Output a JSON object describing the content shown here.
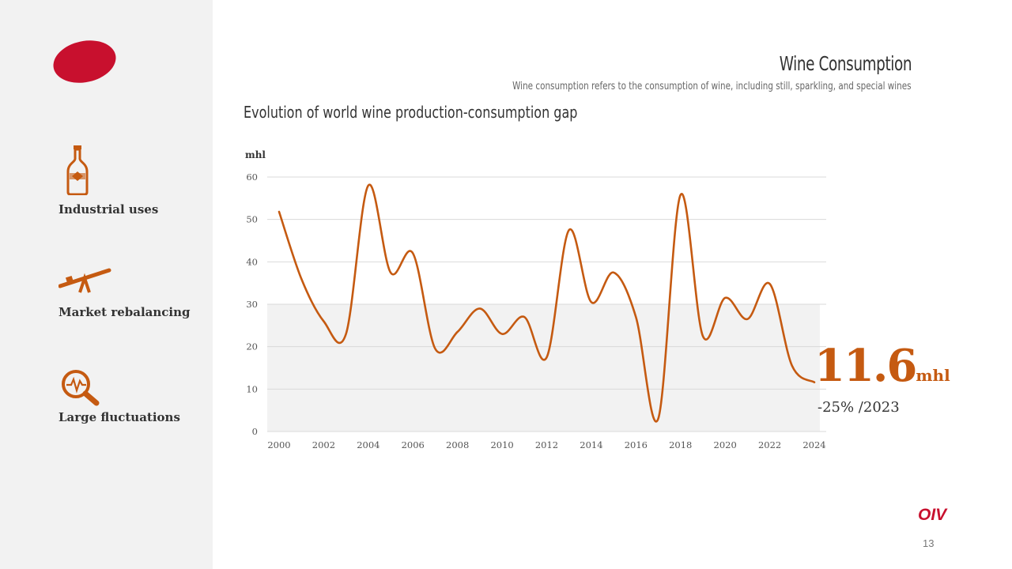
{
  "header": {
    "title": "Wine Consumption",
    "subtitle": "Wine consumption refers to the consumption of wine, including still, sparkling, and special wines"
  },
  "sidebar": {
    "items": [
      {
        "label": "Industrial uses",
        "icon": "wine-bottle-icon"
      },
      {
        "label": "Market rebalancing",
        "icon": "seesaw-icon"
      },
      {
        "label": "Large fluctuations",
        "icon": "magnifier-pulse-icon"
      }
    ]
  },
  "highlight": {
    "value": "11.6",
    "unit": "mhl",
    "change": "-25% /2023"
  },
  "footer": {
    "brand": "OIV",
    "page": "13"
  },
  "colors": {
    "accent": "#c55a11",
    "brand": "#c8102e",
    "sidebar_bg": "#f2f2f2",
    "band": "#f2f2f2"
  },
  "chart_data": {
    "type": "line",
    "title": "Evolution of world wine production-consumption gap",
    "ylabel": "mhl",
    "xlabel": "",
    "ylim": [
      0,
      60
    ],
    "yticks": [
      0,
      10,
      20,
      30,
      40,
      50,
      60
    ],
    "xticks": [
      2000,
      2002,
      2004,
      2006,
      2008,
      2010,
      2012,
      2014,
      2016,
      2018,
      2020,
      2022,
      2024
    ],
    "shaded_band": [
      0,
      30
    ],
    "grid": true,
    "series": [
      {
        "name": "Production-consumption gap",
        "x": [
          2000,
          2001,
          2002,
          2003,
          2004,
          2005,
          2006,
          2007,
          2008,
          2009,
          2010,
          2011,
          2012,
          2013,
          2014,
          2015,
          2016,
          2017,
          2018,
          2019,
          2020,
          2021,
          2022,
          2023,
          2024
        ],
        "values": [
          51.8,
          36,
          26,
          23,
          58,
          37.5,
          42,
          19.5,
          23.5,
          29,
          23,
          27,
          17.5,
          47.5,
          30.5,
          37.5,
          27,
          3,
          55.8,
          22.5,
          31.5,
          26.5,
          34.8,
          15.5,
          11.6
        ]
      }
    ]
  }
}
